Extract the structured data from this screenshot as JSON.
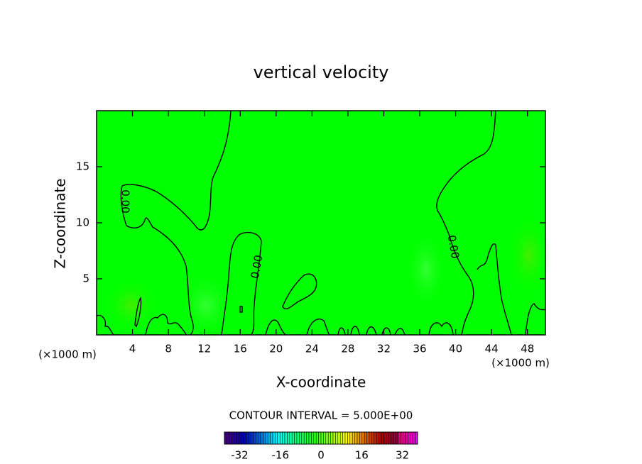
{
  "chart_data": {
    "type": "contour",
    "title": "vertical velocity",
    "x_label": "X-coordinate",
    "y_label": "Z-coordinate",
    "x_unit": "(×1000 m)",
    "xlim": [
      0,
      50
    ],
    "ylim": [
      0,
      20
    ],
    "xticks": [
      4,
      8,
      12,
      16,
      20,
      24,
      28,
      32,
      36,
      40,
      44,
      48
    ],
    "yticks": [
      5,
      10,
      15
    ],
    "contour_levels": [
      {
        "value": 0,
        "label": "0.00"
      }
    ],
    "contour_interval_text": "CONTOUR INTERVAL = 5.000E+00",
    "colorbar": {
      "lim": [
        -38,
        38
      ],
      "ticks": [
        -32,
        -16,
        0,
        16,
        32
      ]
    }
  }
}
